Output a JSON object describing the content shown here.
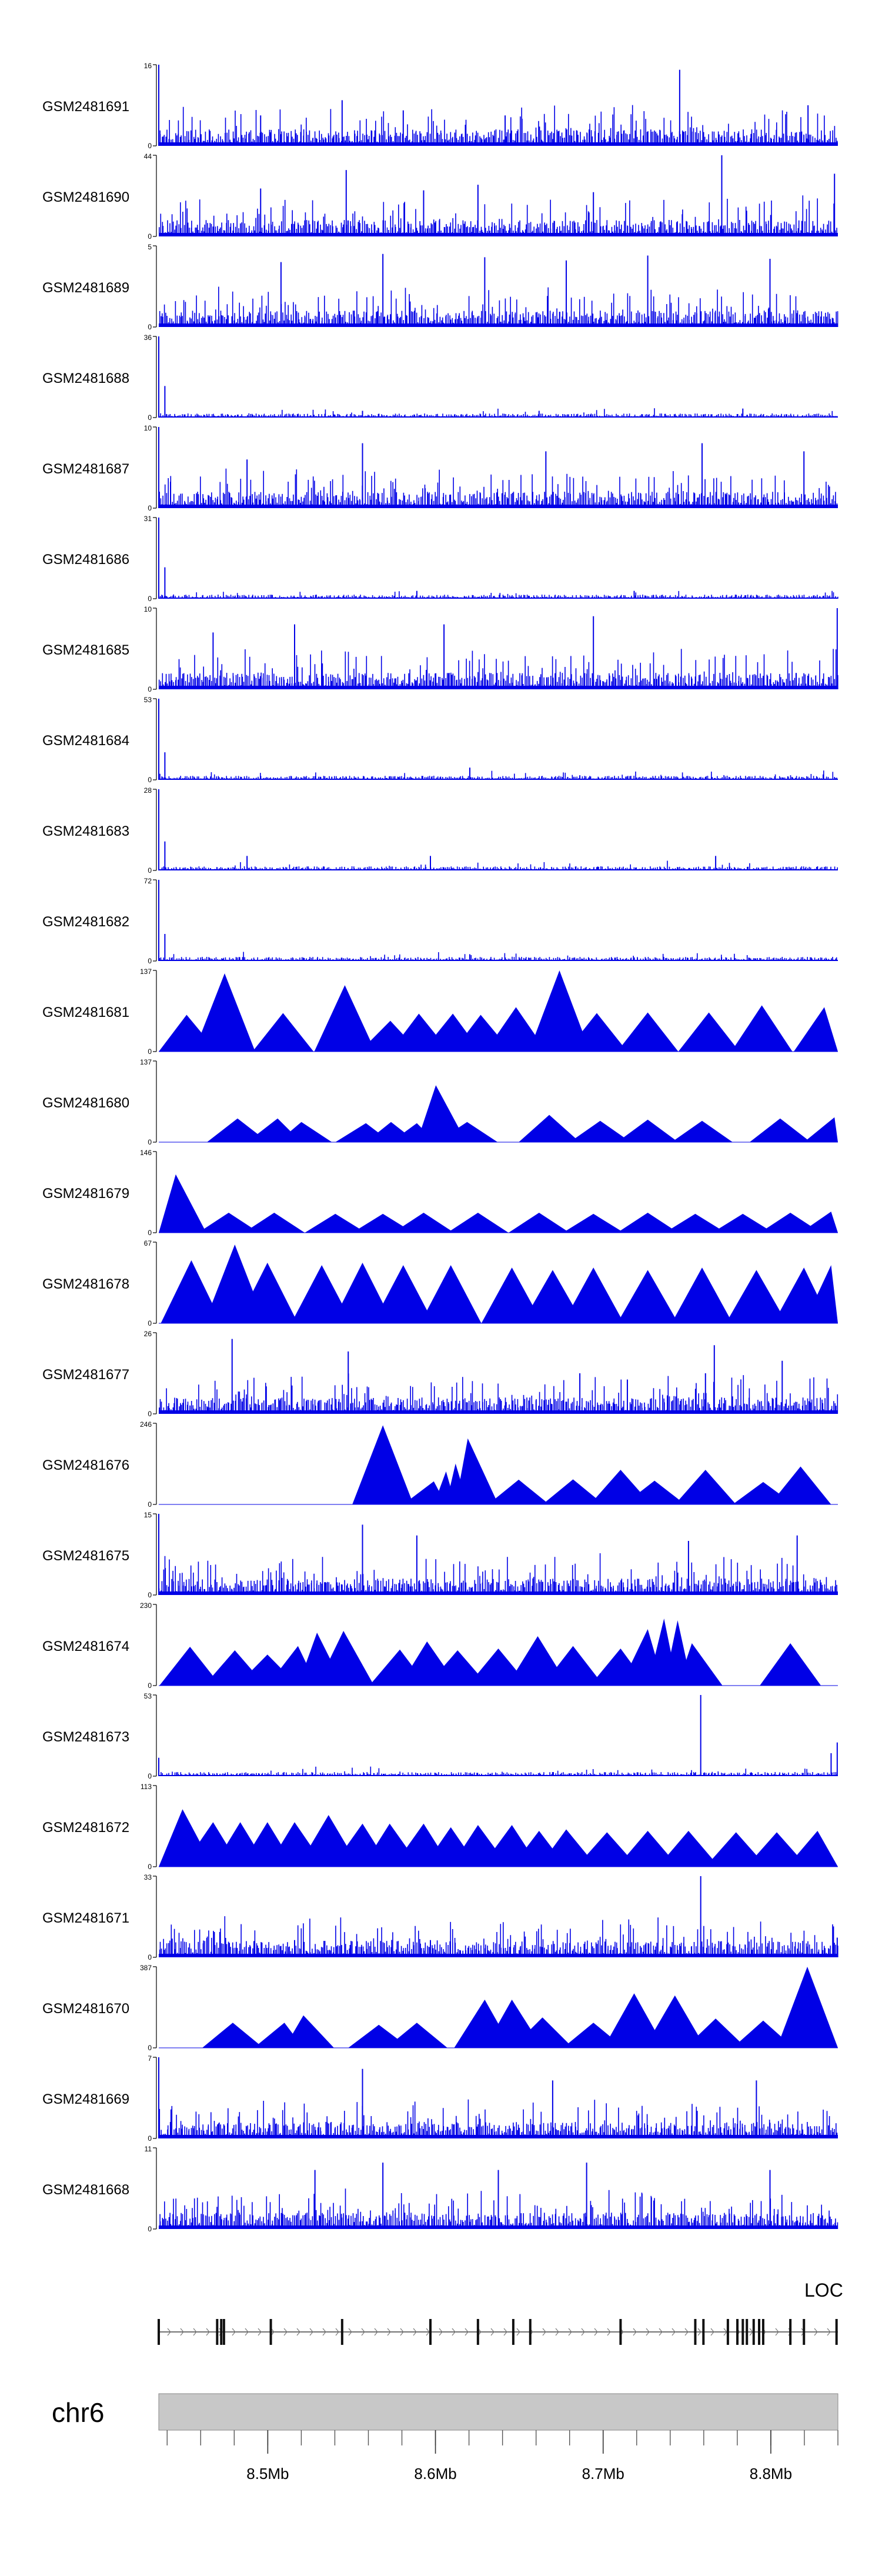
{
  "chart_data": {
    "type": "area",
    "colors": {
      "signal": "#0000e6",
      "axis": "#000000",
      "ideogram": "#c8c8c8"
    },
    "tracks": [
      {
        "name": "GSM2481691",
        "ymax": 16,
        "ymin": 0,
        "style": "dense",
        "spikes": [
          [
            0.0,
            16
          ],
          [
            0.767,
            15
          ],
          [
            0.27,
            9
          ],
          [
            0.36,
            7
          ],
          [
            0.956,
            8
          ],
          [
            0.15,
            6
          ],
          [
            0.51,
            6
          ]
        ]
      },
      {
        "name": "GSM2481690",
        "ymax": 44,
        "ymin": 0,
        "style": "dense",
        "spikes": [
          [
            0.829,
            44
          ],
          [
            0.276,
            36
          ],
          [
            0.995,
            34
          ],
          [
            0.15,
            26
          ],
          [
            0.47,
            28
          ],
          [
            0.64,
            24
          ],
          [
            0.39,
            25
          ]
        ]
      },
      {
        "name": "GSM2481689",
        "ymax": 5,
        "ymin": 0,
        "style": "dense",
        "spikes": [
          [
            0.33,
            4.5
          ],
          [
            0.72,
            4.4
          ],
          [
            0.48,
            4.3
          ],
          [
            0.18,
            4
          ],
          [
            0.9,
            4.2
          ],
          [
            0.6,
            4.1
          ]
        ]
      },
      {
        "name": "GSM2481688",
        "ymax": 36,
        "ymin": 0,
        "style": "sparse",
        "spikes": [
          [
            0.0,
            36
          ],
          [
            0.009,
            14
          ],
          [
            0.86,
            4
          ],
          [
            0.3,
            3
          ],
          [
            0.56,
            3
          ]
        ]
      },
      {
        "name": "GSM2481687",
        "ymax": 10,
        "ymin": 0,
        "style": "dense",
        "spikes": [
          [
            0.0,
            10
          ],
          [
            0.3,
            8
          ],
          [
            0.57,
            7
          ],
          [
            0.8,
            8
          ],
          [
            0.95,
            7
          ],
          [
            0.13,
            6
          ]
        ]
      },
      {
        "name": "GSM2481686",
        "ymax": 31,
        "ymin": 0,
        "style": "sparse",
        "spikes": [
          [
            0.0,
            31
          ],
          [
            0.009,
            12
          ],
          [
            0.38,
            3
          ],
          [
            0.7,
            3
          ]
        ]
      },
      {
        "name": "GSM2481685",
        "ymax": 10,
        "ymin": 0,
        "style": "dense",
        "spikes": [
          [
            0.2,
            8
          ],
          [
            0.64,
            9
          ],
          [
            0.999,
            10
          ],
          [
            0.42,
            8
          ],
          [
            0.08,
            7
          ]
        ]
      },
      {
        "name": "GSM2481684",
        "ymax": 53,
        "ymin": 0,
        "style": "sparse",
        "spikes": [
          [
            0.0,
            53
          ],
          [
            0.009,
            18
          ],
          [
            0.458,
            8
          ],
          [
            0.62,
            3
          ]
        ]
      },
      {
        "name": "GSM2481683",
        "ymax": 28,
        "ymin": 0,
        "style": "sparse",
        "spikes": [
          [
            0.0,
            28
          ],
          [
            0.009,
            10
          ],
          [
            0.13,
            5
          ],
          [
            0.4,
            5
          ],
          [
            0.82,
            5
          ]
        ]
      },
      {
        "name": "GSM2481682",
        "ymax": 72,
        "ymin": 0,
        "style": "sparse",
        "spikes": [
          [
            0.0,
            72
          ],
          [
            0.009,
            24
          ],
          [
            0.458,
            6
          ]
        ]
      },
      {
        "name": "GSM2481681",
        "ymax": 137,
        "ymin": 0,
        "style": "peaks",
        "peaks": [
          [
            0.041,
            62
          ],
          [
            0.097,
            132
          ],
          [
            0.183,
            65
          ],
          [
            0.274,
            112
          ],
          [
            0.341,
            52
          ],
          [
            0.383,
            64
          ],
          [
            0.433,
            64
          ],
          [
            0.474,
            62
          ],
          [
            0.526,
            75
          ],
          [
            0.59,
            137
          ],
          [
            0.645,
            65
          ],
          [
            0.72,
            66
          ],
          [
            0.81,
            66
          ],
          [
            0.888,
            78
          ],
          [
            0.98,
            75
          ]
        ]
      },
      {
        "name": "GSM2481680",
        "ymax": 137,
        "ymin": 0,
        "style": "peaks",
        "peaks": [
          [
            0.116,
            40
          ],
          [
            0.175,
            40
          ],
          [
            0.21,
            34
          ],
          [
            0.305,
            32
          ],
          [
            0.342,
            34
          ],
          [
            0.38,
            32
          ],
          [
            0.408,
            96
          ],
          [
            0.454,
            34
          ],
          [
            0.575,
            46
          ],
          [
            0.65,
            36
          ],
          [
            0.72,
            38
          ],
          [
            0.8,
            36
          ],
          [
            0.915,
            40
          ],
          [
            0.995,
            42
          ]
        ]
      },
      {
        "name": "GSM2481679",
        "ymax": 146,
        "ymin": 0,
        "style": "peaks",
        "peaks": [
          [
            0.025,
            105
          ],
          [
            0.103,
            36
          ],
          [
            0.17,
            36
          ],
          [
            0.26,
            34
          ],
          [
            0.33,
            34
          ],
          [
            0.39,
            36
          ],
          [
            0.47,
            36
          ],
          [
            0.56,
            36
          ],
          [
            0.64,
            34
          ],
          [
            0.72,
            36
          ],
          [
            0.79,
            34
          ],
          [
            0.86,
            34
          ],
          [
            0.93,
            36
          ],
          [
            0.99,
            38
          ]
        ]
      },
      {
        "name": "GSM2481678",
        "ymax": 67,
        "ymin": 0,
        "style": "peaks",
        "peaks": [
          [
            0.048,
            52
          ],
          [
            0.112,
            65
          ],
          [
            0.16,
            50
          ],
          [
            0.24,
            48
          ],
          [
            0.3,
            50
          ],
          [
            0.36,
            48
          ],
          [
            0.43,
            48
          ],
          [
            0.52,
            46
          ],
          [
            0.58,
            44
          ],
          [
            0.64,
            46
          ],
          [
            0.72,
            44
          ],
          [
            0.8,
            46
          ],
          [
            0.88,
            44
          ],
          [
            0.95,
            46
          ],
          [
            0.99,
            48
          ]
        ]
      },
      {
        "name": "GSM2481677",
        "ymax": 26,
        "ymin": 0,
        "style": "dense",
        "spikes": [
          [
            0.108,
            24
          ],
          [
            0.279,
            20
          ],
          [
            0.62,
            13
          ],
          [
            0.805,
            13
          ],
          [
            0.818,
            22
          ],
          [
            0.918,
            17
          ],
          [
            0.69,
            11
          ]
        ]
      },
      {
        "name": "GSM2481676",
        "ymax": 246,
        "ymin": 0,
        "style": "peaks",
        "peaks": [
          [
            0.33,
            240
          ],
          [
            0.405,
            70
          ],
          [
            0.423,
            100
          ],
          [
            0.437,
            124
          ],
          [
            0.455,
            200
          ],
          [
            0.53,
            75
          ],
          [
            0.61,
            76
          ],
          [
            0.68,
            105
          ],
          [
            0.73,
            72
          ],
          [
            0.805,
            105
          ],
          [
            0.89,
            68
          ],
          [
            0.945,
            115
          ]
        ]
      },
      {
        "name": "GSM2481675",
        "ymax": 15,
        "ymin": 0,
        "style": "dense",
        "spikes": [
          [
            0.0,
            15
          ],
          [
            0.3,
            13
          ],
          [
            0.38,
            11
          ],
          [
            0.78,
            10
          ],
          [
            0.94,
            11
          ]
        ]
      },
      {
        "name": "GSM2481674",
        "ymax": 230,
        "ymin": 0,
        "style": "peaks",
        "peaks": [
          [
            0.046,
            110
          ],
          [
            0.112,
            100
          ],
          [
            0.16,
            88
          ],
          [
            0.205,
            112
          ],
          [
            0.233,
            150
          ],
          [
            0.272,
            155
          ],
          [
            0.355,
            102
          ],
          [
            0.395,
            125
          ],
          [
            0.44,
            100
          ],
          [
            0.5,
            105
          ],
          [
            0.558,
            140
          ],
          [
            0.61,
            112
          ],
          [
            0.68,
            105
          ],
          [
            0.72,
            160
          ],
          [
            0.744,
            190
          ],
          [
            0.764,
            185
          ],
          [
            0.785,
            120
          ],
          [
            0.93,
            120
          ]
        ]
      },
      {
        "name": "GSM2481673",
        "ymax": 53,
        "ymin": 0,
        "style": "sparse",
        "spikes": [
          [
            0.0,
            12
          ],
          [
            0.798,
            53
          ],
          [
            0.99,
            15
          ],
          [
            0.999,
            22
          ]
        ]
      },
      {
        "name": "GSM2481672",
        "ymax": 113,
        "ymin": 0,
        "style": "peaks",
        "peaks": [
          [
            0.035,
            80
          ],
          [
            0.08,
            62
          ],
          [
            0.12,
            62
          ],
          [
            0.16,
            62
          ],
          [
            0.2,
            62
          ],
          [
            0.25,
            72
          ],
          [
            0.3,
            60
          ],
          [
            0.34,
            60
          ],
          [
            0.39,
            60
          ],
          [
            0.43,
            55
          ],
          [
            0.47,
            58
          ],
          [
            0.52,
            58
          ],
          [
            0.56,
            50
          ],
          [
            0.6,
            52
          ],
          [
            0.66,
            48
          ],
          [
            0.72,
            50
          ],
          [
            0.78,
            50
          ],
          [
            0.85,
            48
          ],
          [
            0.91,
            48
          ],
          [
            0.97,
            50
          ]
        ]
      },
      {
        "name": "GSM2481671",
        "ymax": 33,
        "ymin": 0,
        "style": "dense",
        "spikes": [
          [
            0.798,
            33
          ],
          [
            0.999,
            8
          ],
          [
            0.4,
            7
          ],
          [
            0.2,
            7
          ]
        ]
      },
      {
        "name": "GSM2481670",
        "ymax": 387,
        "ymin": 0,
        "style": "peaks",
        "peaks": [
          [
            0.109,
            120
          ],
          [
            0.185,
            120
          ],
          [
            0.213,
            155
          ],
          [
            0.324,
            110
          ],
          [
            0.38,
            120
          ],
          [
            0.48,
            230
          ],
          [
            0.52,
            230
          ],
          [
            0.565,
            145
          ],
          [
            0.64,
            120
          ],
          [
            0.7,
            260
          ],
          [
            0.76,
            250
          ],
          [
            0.82,
            140
          ],
          [
            0.89,
            130
          ],
          [
            0.955,
            387
          ]
        ]
      },
      {
        "name": "GSM2481669",
        "ymax": 7,
        "ymin": 0,
        "style": "dense",
        "spikes": [
          [
            0.0,
            7
          ],
          [
            0.3,
            6
          ],
          [
            0.58,
            5
          ],
          [
            0.88,
            5
          ]
        ]
      },
      {
        "name": "GSM2481668",
        "ymax": 11,
        "ymin": 0,
        "style": "dense",
        "spikes": [
          [
            0.33,
            9
          ],
          [
            0.63,
            9
          ],
          [
            0.23,
            8
          ],
          [
            0.9,
            8
          ],
          [
            0.5,
            8
          ]
        ]
      }
    ],
    "gene": {
      "label": "LOC",
      "exons": [
        0.0,
        0.086,
        0.092,
        0.096,
        0.165,
        0.27,
        0.4,
        0.47,
        0.522,
        0.547,
        0.68,
        0.79,
        0.802,
        0.838,
        0.852,
        0.86,
        0.866,
        0.876,
        0.884,
        0.89,
        0.93,
        0.95,
        0.998
      ]
    },
    "ideogram": {
      "chromosome": "chr6"
    },
    "x_axis": {
      "range_mb": [
        8.435,
        8.84
      ],
      "tick_labels": [
        "8.5Mb",
        "8.6Mb",
        "8.7Mb",
        "8.8Mb"
      ],
      "tick_values": [
        8.5,
        8.6,
        8.7,
        8.8
      ],
      "minor_ticks": [
        8.44,
        8.46,
        8.48,
        8.5,
        8.52,
        8.54,
        8.56,
        8.58,
        8.6,
        8.62,
        8.64,
        8.66,
        8.68,
        8.7,
        8.72,
        8.74,
        8.76,
        8.78,
        8.8,
        8.82,
        8.84
      ]
    }
  }
}
